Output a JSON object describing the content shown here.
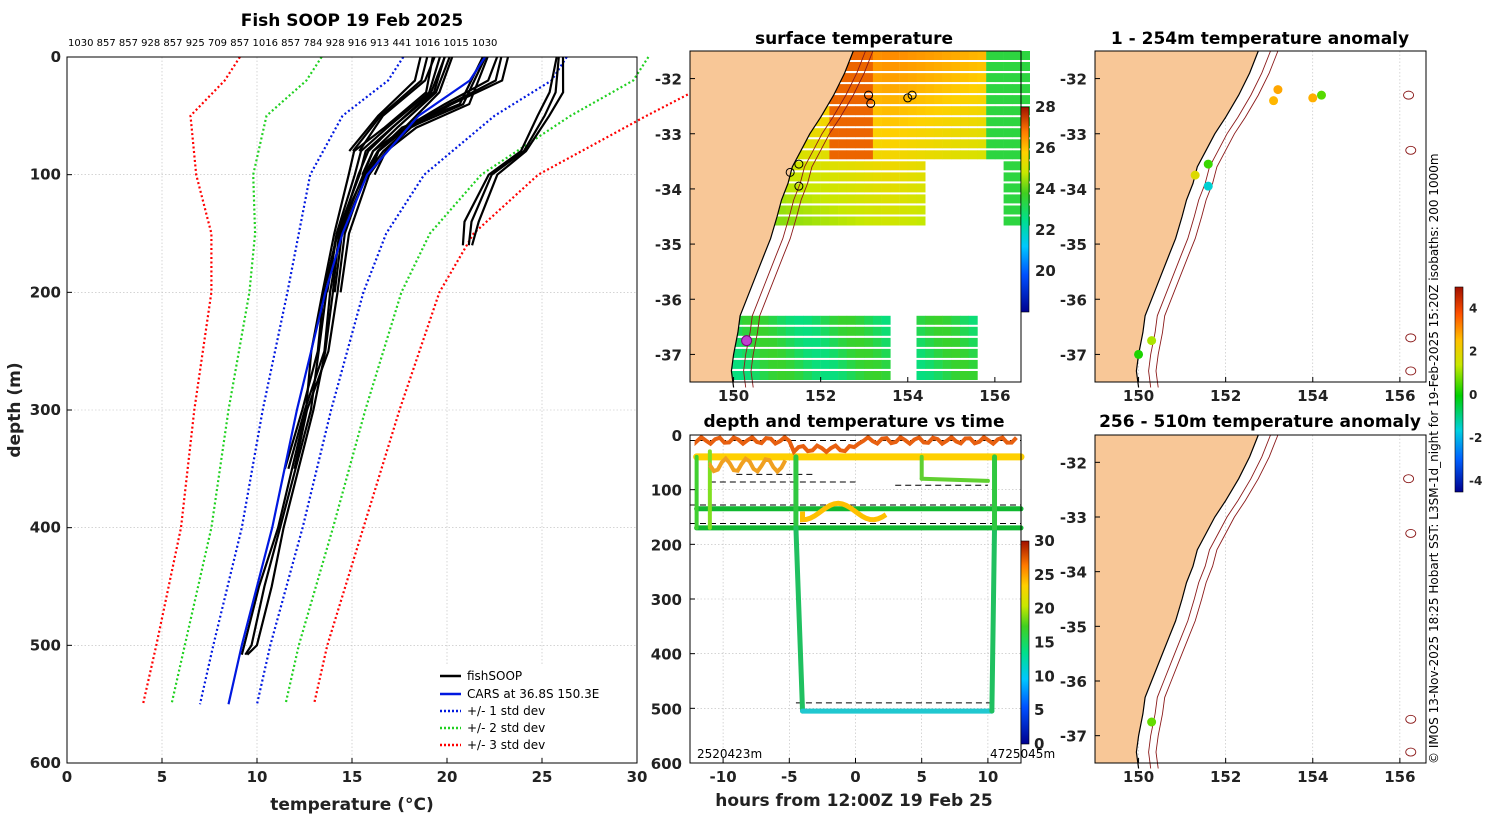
{
  "chart_data": [
    {
      "type": "line",
      "id": "profile",
      "title": "Fish SOOP 19 Feb 2025",
      "top_labels": "1030 857 857 928 857 925 709 857 1016 857 784 928 916 913 441 1016 1015 1030",
      "xlabel": "temperature (°C)",
      "ylabel": "depth (m)",
      "xlim": [
        0,
        30
      ],
      "ylim": [
        600,
        0
      ],
      "xticks": [
        0,
        5,
        10,
        15,
        20,
        25,
        30
      ],
      "yticks": [
        0,
        100,
        200,
        300,
        400,
        500,
        600
      ],
      "legend": [
        "fishSOOP",
        "CARS at 36.8S 150.3E",
        "+/- 1 std dev",
        "+/- 2 std dev",
        "+/- 3 std dev"
      ],
      "depths": [
        0,
        20,
        50,
        100,
        150,
        200,
        300,
        400,
        500,
        550
      ],
      "cars_mean": [
        22.0,
        21.2,
        18.5,
        15.8,
        14.5,
        13.6,
        12.1,
        10.8,
        9.2,
        8.5
      ],
      "std_dev": [
        4.3,
        4.3,
        4.0,
        3.0,
        2.3,
        2.0,
        1.8,
        1.6,
        1.5,
        1.5
      ],
      "fish_profiles": [
        {
          "depth": [
            0,
            30,
            60,
            80,
            100,
            150,
            200,
            250,
            300,
            400,
            450,
            500,
            508
          ],
          "temp": [
            19.5,
            19.0,
            17.0,
            15.5,
            15.0,
            14.2,
            13.8,
            13.2,
            12.7,
            11.3,
            10.5,
            9.6,
            9.3
          ]
        },
        {
          "depth": [
            0,
            30,
            60,
            80,
            100,
            150,
            200,
            250,
            300,
            350
          ],
          "temp": [
            20.0,
            19.5,
            17.5,
            16.0,
            15.5,
            14.5,
            13.9,
            13.4,
            12.5,
            11.8
          ]
        },
        {
          "depth": [
            0,
            40,
            60,
            80,
            100,
            150,
            200
          ],
          "temp": [
            22.0,
            21.0,
            18.0,
            16.5,
            15.8,
            14.6,
            14.0
          ]
        },
        {
          "depth": [
            0,
            30,
            50,
            80,
            100,
            140,
            160
          ],
          "temp": [
            26.0,
            25.8,
            25.0,
            24.0,
            22.5,
            21.3,
            21.0
          ]
        },
        {
          "depth": [
            0,
            20,
            40,
            60,
            80,
            100
          ],
          "temp": [
            23.0,
            22.5,
            20.0,
            18.0,
            16.5,
            15.8
          ]
        },
        {
          "depth": [
            0,
            20,
            50,
            80
          ],
          "temp": [
            19.0,
            18.5,
            16.5,
            15.2
          ]
        }
      ]
    },
    {
      "type": "heatmap",
      "id": "sst",
      "title": "surface temperature",
      "xlim": [
        149.0,
        156.6
      ],
      "ylim": [
        -37.5,
        -31.5
      ],
      "xticks": [
        150,
        152,
        154,
        156
      ],
      "yticks": [
        -32,
        -33,
        -34,
        -35,
        -36,
        -37
      ],
      "colorbar_ticks": [
        20,
        22,
        24,
        26,
        28
      ],
      "colorbar_range": [
        18,
        28
      ]
    },
    {
      "type": "scatter",
      "id": "anom_shallow",
      "title": "1 - 254m temperature anomaly",
      "xlim": [
        149.0,
        156.6
      ],
      "ylim": [
        -37.5,
        -31.5
      ],
      "xticks": [
        150,
        152,
        154,
        156
      ],
      "yticks": [
        -32,
        -33,
        -34,
        -35,
        -36,
        -37
      ],
      "points": [
        {
          "lon": 153.2,
          "lat": -32.2,
          "anomaly": 2.8
        },
        {
          "lon": 153.1,
          "lat": -32.4,
          "anomaly": 2.6
        },
        {
          "lon": 154.0,
          "lat": -32.35,
          "anomaly": 2.7
        },
        {
          "lon": 154.2,
          "lat": -32.3,
          "anomaly": 0.6
        },
        {
          "lon": 151.6,
          "lat": -33.55,
          "anomaly": 0.4
        },
        {
          "lon": 151.3,
          "lat": -33.75,
          "anomaly": 1.8
        },
        {
          "lon": 151.6,
          "lat": -33.95,
          "anomaly": -1.6
        },
        {
          "lon": 150.3,
          "lat": -36.75,
          "anomaly": 1.2
        },
        {
          "lon": 150.0,
          "lat": -37.0,
          "anomaly": 0.2
        }
      ]
    },
    {
      "type": "scatter",
      "id": "anom_deep",
      "title": "256 - 510m temperature anomaly",
      "xlim": [
        149.0,
        156.6
      ],
      "ylim": [
        -37.5,
        -31.5
      ],
      "xticks": [
        150,
        152,
        154,
        156
      ],
      "yticks": [
        -32,
        -33,
        -34,
        -35,
        -36,
        -37
      ],
      "points": [
        {
          "lon": 150.3,
          "lat": -36.75,
          "anomaly": 0.7
        }
      ],
      "colorbar_ticks": [
        -4,
        -2,
        0,
        2,
        4
      ],
      "colorbar_range": [
        -4.5,
        5
      ]
    },
    {
      "type": "line",
      "id": "timeseries",
      "title": "depth and temperature vs time",
      "xlabel": "hours from 12:00Z 19 Feb 25",
      "xlim": [
        -12.5,
        12.5
      ],
      "ylim": [
        600,
        0
      ],
      "xticks": [
        -10,
        -5,
        0,
        5,
        10
      ],
      "yticks": [
        0,
        100,
        200,
        300,
        400,
        500,
        600
      ],
      "colorbar_ticks": [
        0,
        5,
        10,
        15,
        20,
        25,
        30
      ],
      "colorbar_range": [
        0,
        30
      ],
      "corner_left": "2520423m",
      "corner_right": "4725045m"
    }
  ],
  "side_text": "© IMOS 13-Nov-2025 18:25 Hobart SST: L3SM-1d_night for 19-Feb-2025 15:20Z isobaths: 200  1000m"
}
